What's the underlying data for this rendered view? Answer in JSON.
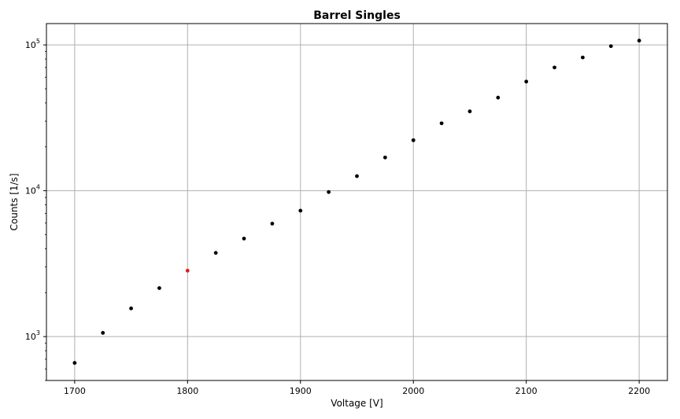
{
  "chart_data": {
    "type": "scatter",
    "title": "Barrel Singles",
    "xlabel": "Voltage [V]",
    "ylabel": "Counts [1/s]",
    "xlim": [
      1675,
      2225
    ],
    "ylim": [
      500,
      140000
    ],
    "yscale": "log",
    "grid": true,
    "xticks": [
      1700,
      1800,
      1900,
      2000,
      2100,
      2200
    ],
    "yticks": [
      {
        "value": 1000,
        "base": "10",
        "exp": "3"
      },
      {
        "value": 10000,
        "base": "10",
        "exp": "4"
      },
      {
        "value": 100000,
        "base": "10",
        "exp": "5"
      }
    ],
    "highlight_color": "#e31a1c",
    "point_color": "#000000",
    "points": [
      {
        "x": 1700,
        "y": 660
      },
      {
        "x": 1725,
        "y": 1060
      },
      {
        "x": 1750,
        "y": 1560
      },
      {
        "x": 1775,
        "y": 2150
      },
      {
        "x": 1800,
        "y": 2830,
        "highlight": true
      },
      {
        "x": 1825,
        "y": 3750
      },
      {
        "x": 1850,
        "y": 4700
      },
      {
        "x": 1875,
        "y": 5950
      },
      {
        "x": 1900,
        "y": 7300
      },
      {
        "x": 1925,
        "y": 9800
      },
      {
        "x": 1950,
        "y": 12600
      },
      {
        "x": 1975,
        "y": 16900
      },
      {
        "x": 2000,
        "y": 22200
      },
      {
        "x": 2025,
        "y": 29000
      },
      {
        "x": 2050,
        "y": 35000
      },
      {
        "x": 2075,
        "y": 43500
      },
      {
        "x": 2100,
        "y": 56000
      },
      {
        "x": 2125,
        "y": 70000
      },
      {
        "x": 2150,
        "y": 82000
      },
      {
        "x": 2175,
        "y": 98000
      },
      {
        "x": 2200,
        "y": 107000
      }
    ]
  }
}
